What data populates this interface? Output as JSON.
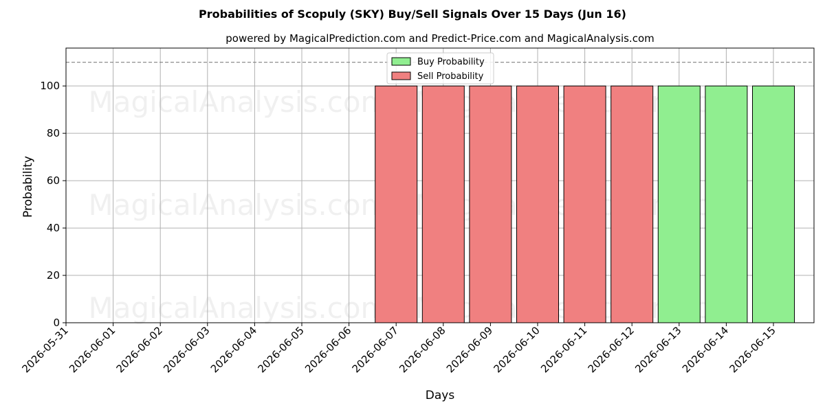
{
  "chart_data": {
    "type": "bar",
    "title": "Probabilities of Scopuly (SKY) Buy/Sell Signals Over 15 Days (Jun 16)",
    "subtitle": "powered by MagicalPrediction.com and Predict-Price.com and MagicalAnalysis.com",
    "xlabel": "Days",
    "ylabel": "Probability",
    "x_ticks": [
      "2026-05-31",
      "2026-06-01",
      "2026-06-02",
      "2026-06-03",
      "2026-06-04",
      "2026-06-05",
      "2026-06-06",
      "2026-06-07",
      "2026-06-08",
      "2026-06-09",
      "2026-06-10",
      "2026-06-11",
      "2026-06-12",
      "2026-06-13",
      "2026-06-14",
      "2026-06-15"
    ],
    "y_ticks": [
      0,
      20,
      40,
      60,
      80,
      100
    ],
    "ylim": [
      0,
      116
    ],
    "reference_line": 110,
    "grid": true,
    "legend_position": "upper center",
    "series": [
      {
        "name": "Buy Probability",
        "color": "#90ee90",
        "points": [
          {
            "x": "2026-06-13",
            "value": 100
          },
          {
            "x": "2026-06-14",
            "value": 100
          },
          {
            "x": "2026-06-15",
            "value": 100
          }
        ]
      },
      {
        "name": "Sell Probability",
        "color": "#f08080",
        "points": [
          {
            "x": "2026-06-07",
            "value": 100
          },
          {
            "x": "2026-06-08",
            "value": 100
          },
          {
            "x": "2026-06-09",
            "value": 100
          },
          {
            "x": "2026-06-10",
            "value": 100
          },
          {
            "x": "2026-06-11",
            "value": 100
          },
          {
            "x": "2026-06-12",
            "value": 100
          }
        ]
      }
    ],
    "watermarks": [
      "MagicalAnalysis.com",
      "MagicalPrediction.com"
    ]
  }
}
